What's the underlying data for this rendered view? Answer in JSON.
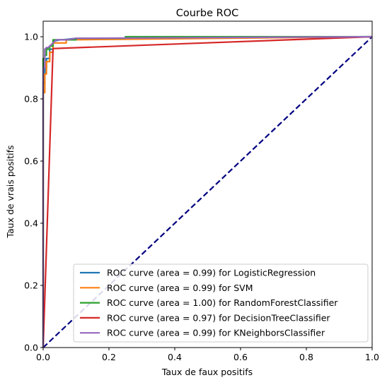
{
  "chart_data": {
    "type": "line",
    "title": "Courbe ROC",
    "xlabel": "Taux de faux positifs",
    "ylabel": "Taux de vrais positifs",
    "xlim": [
      0.0,
      1.0
    ],
    "ylim": [
      0.0,
      1.05
    ],
    "xticks": [
      "0.0",
      "0.2",
      "0.4",
      "0.6",
      "0.8",
      "1.0"
    ],
    "yticks": [
      "0.0",
      "0.2",
      "0.4",
      "0.6",
      "0.8",
      "1.0"
    ],
    "grid": false,
    "legend_position": "lower-right",
    "diagonal": {
      "x": [
        0,
        1
      ],
      "y": [
        0,
        1
      ],
      "color": "#000080",
      "style": "dashed"
    },
    "series": [
      {
        "name": "ROC curve (area = 0.99) for LogisticRegression",
        "color": "#1f77b4",
        "x": [
          0,
          0,
          0.005,
          0.005,
          0.01,
          0.01,
          0.02,
          0.02,
          0.03,
          0.03,
          0.05,
          0.06,
          0.1,
          0.2,
          1.0
        ],
        "y": [
          0,
          0.85,
          0.85,
          0.9,
          0.9,
          0.93,
          0.93,
          0.96,
          0.96,
          0.985,
          0.99,
          0.99,
          0.995,
          0.995,
          1.0
        ]
      },
      {
        "name": "ROC curve (area = 0.99) for SVM",
        "color": "#ff7f0e",
        "x": [
          0,
          0,
          0.005,
          0.005,
          0.01,
          0.01,
          0.02,
          0.02,
          0.03,
          0.03,
          0.07,
          0.07,
          1.0
        ],
        "y": [
          0,
          0.82,
          0.82,
          0.88,
          0.88,
          0.92,
          0.92,
          0.95,
          0.95,
          0.98,
          0.98,
          0.99,
          1.0
        ]
      },
      {
        "name": "ROC curve (area = 1.00) for RandomForestClassifier",
        "color": "#2ca02c",
        "x": [
          0,
          0,
          0.005,
          0.005,
          0.01,
          0.01,
          0.02,
          0.02,
          0.03,
          0.03,
          0.1,
          0.1,
          0.25,
          0.25,
          1.0
        ],
        "y": [
          0,
          0.93,
          0.93,
          0.94,
          0.94,
          0.96,
          0.96,
          0.97,
          0.97,
          0.99,
          0.99,
          0.995,
          0.995,
          1.0,
          1.0
        ]
      },
      {
        "name": "ROC curve (area = 0.97) for DecisionTreeClassifier",
        "color": "#d62728",
        "x": [
          0,
          0.03,
          1.0
        ],
        "y": [
          0,
          0.962,
          1.0
        ]
      },
      {
        "name": "ROC curve (area = 0.99) for KNeighborsClassifier",
        "color": "#9467bd",
        "x": [
          0,
          0,
          0.005,
          0.005,
          0.01,
          0.015,
          0.02,
          0.03,
          0.04,
          0.07,
          0.1,
          1.0
        ],
        "y": [
          0,
          0.9,
          0.9,
          0.96,
          0.965,
          0.965,
          0.97,
          0.98,
          0.99,
          0.99,
          0.995,
          1.0
        ]
      }
    ]
  }
}
